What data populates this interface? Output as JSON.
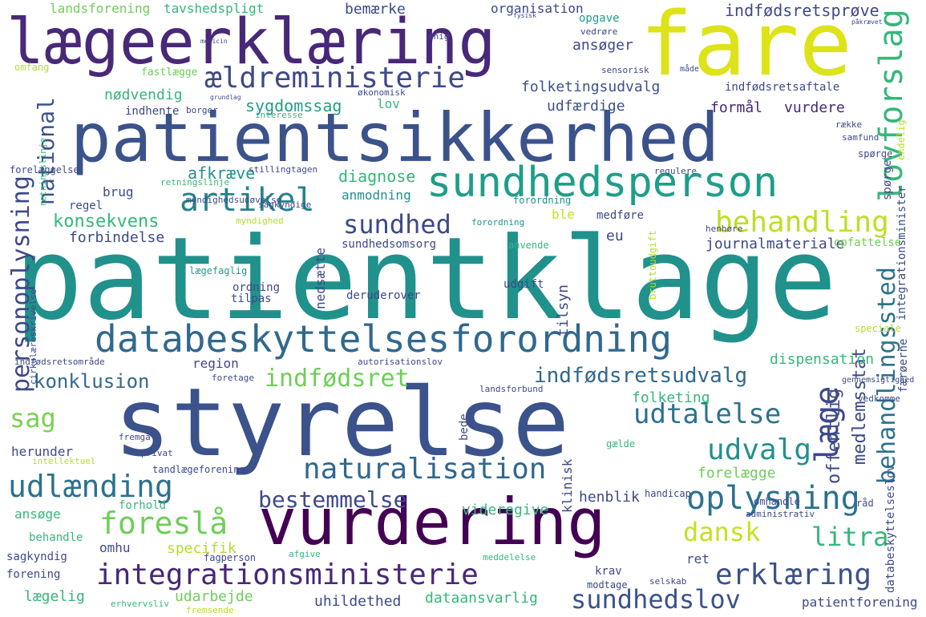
{
  "palette": {
    "dark_purple": "#440154",
    "purple": "#482878",
    "indigo": "#3e4989",
    "blue": "#31688e",
    "steel": "#26828e",
    "teal": "#1f9e89",
    "green": "#35b779",
    "light_green": "#6ece58",
    "lime": "#b5de2b",
    "yellow": "#dde318"
  },
  "words": [
    {
      "text": "patientklage",
      "color": "#21918c"
    },
    {
      "text": "styrelse",
      "color": "#3b528b"
    },
    {
      "text": "patientsikkerhed",
      "color": "#3b528b"
    },
    {
      "text": "fare",
      "color": "#dde318"
    },
    {
      "text": "lægeerklæring",
      "color": "#482878"
    },
    {
      "text": "vurdering",
      "color": "#440154"
    },
    {
      "text": "sundhedsperson",
      "color": "#1f9e89"
    },
    {
      "text": "integrationsministerie",
      "color": "#482878"
    },
    {
      "text": "databeskyttelsesforordning",
      "color": "#31688e"
    },
    {
      "text": "ældreministerie",
      "color": "#3e4989"
    },
    {
      "text": "artikel",
      "color": "#26828e"
    },
    {
      "text": "behandling",
      "color": "#bddf26"
    },
    {
      "text": "naturalisation",
      "color": "#31688e"
    },
    {
      "text": "udlænding",
      "color": "#2c728e"
    },
    {
      "text": "oplysning",
      "color": "#2c728e"
    },
    {
      "text": "erklæring",
      "color": "#3b528b"
    },
    {
      "text": "udtalelse",
      "color": "#2c728e"
    },
    {
      "text": "udvalg",
      "color": "#21918c"
    },
    {
      "text": "foreslå",
      "color": "#6ece58"
    },
    {
      "text": "dansk",
      "color": "#c8e020"
    },
    {
      "text": "sundhed",
      "color": "#3e4989"
    },
    {
      "text": "indfødsret",
      "color": "#6ece58"
    },
    {
      "text": "indfødsretsudvalg",
      "color": "#31688e"
    },
    {
      "text": "konklusion",
      "color": "#31688e"
    },
    {
      "text": "sag",
      "color": "#7ad151"
    },
    {
      "text": "bestemmelse",
      "color": "#3e4989"
    },
    {
      "text": "sundhedslov",
      "color": "#3b528b"
    },
    {
      "text": "litra",
      "color": "#35b779"
    },
    {
      "text": "konsekvens",
      "color": "#35b779"
    },
    {
      "text": "lovforslag",
      "color": "#35b779"
    },
    {
      "text": "personoplysning",
      "color": "#3e4989"
    },
    {
      "text": "national",
      "color": "#3b528b"
    },
    {
      "text": "læge",
      "color": "#3e4989"
    },
    {
      "text": "behandlingssted",
      "color": "#2c728e"
    },
    {
      "text": "nødvendig",
      "color": "#35b779"
    },
    {
      "text": "sygdomssag",
      "color": "#1f9e89"
    },
    {
      "text": "diagnose",
      "color": "#35b779"
    },
    {
      "text": "afkræve",
      "color": "#21918c"
    },
    {
      "text": "brug",
      "color": "#3e4989"
    },
    {
      "text": "landsforening",
      "color": "#6ece58"
    },
    {
      "text": "tavshedspligt",
      "color": "#35b779"
    },
    {
      "text": "bemærke",
      "color": "#3e4989"
    },
    {
      "text": "organisation",
      "color": "#3e4989"
    },
    {
      "text": "indfødsretsprøve",
      "color": "#3e4989"
    },
    {
      "text": "opgave",
      "color": "#1f9e89"
    },
    {
      "text": "ansøger",
      "color": "#3e4989"
    },
    {
      "text": "folketingsudvalg",
      "color": "#3b528b"
    },
    {
      "text": "udfærdige",
      "color": "#3b528b"
    },
    {
      "text": "formål",
      "color": "#482878"
    },
    {
      "text": "vurdere",
      "color": "#482878"
    },
    {
      "text": "lov",
      "color": "#35b779"
    },
    {
      "text": "indhente",
      "color": "#3e4989"
    },
    {
      "text": "indfødsretsaftale",
      "color": "#3e4989"
    },
    {
      "text": "fastlægge",
      "color": "#6ece58"
    },
    {
      "text": "omfang",
      "color": "#b5de2b"
    },
    {
      "text": "forordning",
      "color": "#21918c"
    },
    {
      "text": "medføre",
      "color": "#3e4989"
    },
    {
      "text": "anmodning",
      "color": "#21918c"
    },
    {
      "text": "regel",
      "color": "#3e4989"
    },
    {
      "text": "forbindelse",
      "color": "#3e4989"
    },
    {
      "text": "ble",
      "color": "#c8e020"
    },
    {
      "text": "eu",
      "color": "#3e4989"
    },
    {
      "text": "sundhedsomsorg",
      "color": "#3e4989"
    },
    {
      "text": "journalmateriale",
      "color": "#3e4989"
    },
    {
      "text": "opfattelse",
      "color": "#6ece58"
    },
    {
      "text": "tilsyn",
      "color": "#21918c"
    },
    {
      "text": "nedsætte",
      "color": "#3e4989"
    },
    {
      "text": "lægefaglig",
      "color": "#1f9e89"
    },
    {
      "text": "ordning",
      "color": "#3e4989"
    },
    {
      "text": "tilpas",
      "color": "#3e4989"
    },
    {
      "text": "udgift",
      "color": "#3e4989"
    },
    {
      "text": "deruderover",
      "color": "#3e4989"
    },
    {
      "text": "region",
      "color": "#3e4989"
    },
    {
      "text": "offentlig",
      "color": "#35b779"
    },
    {
      "text": "medlemsstat",
      "color": "#35b779"
    },
    {
      "text": "dispensation",
      "color": "#3e4989"
    },
    {
      "text": "folketing",
      "color": "#3e4989"
    },
    {
      "text": "herunder",
      "color": "#3e4989"
    },
    {
      "text": "forelægge",
      "color": "#6ece58"
    },
    {
      "text": "henblik",
      "color": "#3e4989"
    },
    {
      "text": "videregive",
      "color": "#35b779"
    },
    {
      "text": "ansøge",
      "color": "#35b779"
    },
    {
      "text": "forhold",
      "color": "#35b779"
    },
    {
      "text": "behandle",
      "color": "#35b779"
    },
    {
      "text": "omhu",
      "color": "#3e4989"
    },
    {
      "text": "specifik",
      "color": "#b5de2b"
    },
    {
      "text": "ret",
      "color": "#3e4989"
    },
    {
      "text": "sagkyndig",
      "color": "#3e4989"
    },
    {
      "text": "forening",
      "color": "#3e4989"
    },
    {
      "text": "fagperson",
      "color": "#3e4989"
    },
    {
      "text": "krav",
      "color": "#3e4989"
    },
    {
      "text": "modtage",
      "color": "#3e4989"
    },
    {
      "text": "lægelig",
      "color": "#35b779"
    },
    {
      "text": "udarbejde",
      "color": "#6ece58"
    },
    {
      "text": "uhildethed",
      "color": "#3e4989"
    },
    {
      "text": "dataansvarlig",
      "color": "#35b779"
    },
    {
      "text": "patientforening",
      "color": "#3e4989"
    },
    {
      "text": "tandlægeforening",
      "color": "#3e4989"
    },
    {
      "text": "handicap",
      "color": "#3e4989"
    },
    {
      "text": "omhandle",
      "color": "#3e4989"
    },
    {
      "text": "råd",
      "color": "#3e4989"
    },
    {
      "text": "speciale",
      "color": "#b5de2b"
    },
    {
      "text": "vedkomme",
      "color": "#3e4989"
    },
    {
      "text": "dansk­kundskab",
      "color": "#3e4989"
    },
    {
      "text": "spørge",
      "color": "#3e4989"
    },
    {
      "text": "samfund",
      "color": "#3e4989"
    },
    {
      "text": "række",
      "color": "#3e4989"
    },
    {
      "text": "økonomisk",
      "color": "#3e4989"
    },
    {
      "text": "interesse",
      "color": "#35b779"
    },
    {
      "text": "borger",
      "color": "#3e4989"
    },
    {
      "text": "forelæggelse",
      "color": "#3e4989"
    },
    {
      "text": "stillingtagen",
      "color": "#3e4989"
    },
    {
      "text": "retningslinje",
      "color": "#35b779"
    },
    {
      "text": "sagkyndige",
      "color": "#3e4989"
    },
    {
      "text": "myndighed",
      "color": "#b5de2b"
    },
    {
      "text": "myndighedsudøvelse",
      "color": "#3e4989"
    },
    {
      "text": "forordning",
      "color": "#3e4989"
    },
    {
      "text": "anvende",
      "color": "#35b779"
    },
    {
      "text": "henhøre",
      "color": "#3e4989"
    },
    {
      "text": "regulere",
      "color": "#3e4989"
    },
    {
      "text": "fastsætte",
      "color": "#b5de2b"
    },
    {
      "text": "autorisationslov",
      "color": "#3e4989"
    },
    {
      "text": "bruttoudgift",
      "color": "#3e4989"
    },
    {
      "text": "indfødsretsområde",
      "color": "#3e4989"
    },
    {
      "text": "cirkulæreskrivelse",
      "color": "#3e4989"
    },
    {
      "text": "foretage",
      "color": "#3e4989"
    },
    {
      "text": "landsforbund",
      "color": "#3e4989"
    },
    {
      "text": "fremgå",
      "color": "#3e4989"
    },
    {
      "text": "privat",
      "color": "#3e4989"
    },
    {
      "text": "bede",
      "color": "#b5de2b"
    },
    {
      "text": "intellektuel",
      "color": "#b5de2b"
    },
    {
      "text": "klinisk",
      "color": "#35b779"
    },
    {
      "text": "gælde",
      "color": "#3e4989"
    },
    {
      "text": "administrativ",
      "color": "#3e4989"
    },
    {
      "text": "afgive",
      "color": "#35b779"
    },
    {
      "text": "meddelelse",
      "color": "#35b779"
    },
    {
      "text": "færøerne",
      "color": "#3e4989"
    },
    {
      "text": "selskab",
      "color": "#3e4989"
    },
    {
      "text": "erhvervsliv",
      "color": "#35b779"
    },
    {
      "text": "fremsende",
      "color": "#b5de2b"
    },
    {
      "text": "gennemsigtighed",
      "color": "#3e4989"
    },
    {
      "text": "databeskyttelseslov",
      "color": "#3e4989"
    },
    {
      "text": "integrationsminister",
      "color": "#3e4989"
    },
    {
      "text": "endelig",
      "color": "#b5de2b"
    },
    {
      "text": "sensorisk",
      "color": "#3e4989"
    },
    {
      "text": "måde",
      "color": "#3e4989"
    },
    {
      "text": "enig",
      "color": "#3e4989"
    },
    {
      "text": "vedrøre",
      "color": "#3e4989"
    },
    {
      "text": "påkrævet",
      "color": "#3e4989"
    },
    {
      "text": "fysisk",
      "color": "#3e4989"
    },
    {
      "text": "grundlag",
      "color": "#3e4989"
    },
    {
      "text": "medicin",
      "color": "#3e4989"
    }
  ]
}
